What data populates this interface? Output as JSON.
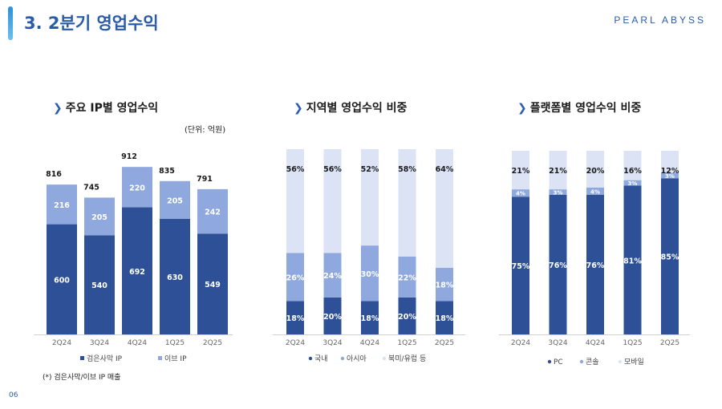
{
  "header": {
    "title": "3. 2분기 영업수익",
    "brand": "PEARL ABYSS",
    "accent_color": "#2b8fd9"
  },
  "footnote": "(*) 검은사막/이브 IP 매출",
  "page_number": "06",
  "chart_data": [
    {
      "type": "bar",
      "stacked": true,
      "title": "주요 IP별 영업수익",
      "unit_label": "(단위: 억원)",
      "categories": [
        "2Q24",
        "3Q24",
        "4Q24",
        "1Q25",
        "2Q25"
      ],
      "series": [
        {
          "name": "검은사막 IP",
          "color": "#2e5096",
          "values": [
            600,
            540,
            692,
            630,
            549
          ]
        },
        {
          "name": "이브 IP",
          "color": "#8fa9df",
          "values": [
            216,
            205,
            220,
            205,
            242
          ]
        }
      ],
      "totals": [
        816,
        745,
        912,
        835,
        791
      ],
      "ylim": [
        0,
        1000
      ],
      "legend": "bottom"
    },
    {
      "type": "bar",
      "stacked": true,
      "percent": true,
      "title": "지역별 영업수익 비중",
      "categories": [
        "2Q24",
        "3Q24",
        "4Q24",
        "1Q25",
        "2Q25"
      ],
      "series": [
        {
          "name": "국내",
          "color": "#2e5096",
          "values": [
            18,
            20,
            18,
            20,
            18
          ]
        },
        {
          "name": "아시아",
          "color": "#8fa9df",
          "values": [
            26,
            24,
            30,
            22,
            18
          ]
        },
        {
          "name": "북미/유럽 등",
          "color": "#dbe3f5",
          "values": [
            56,
            56,
            52,
            58,
            64
          ]
        }
      ],
      "ylim": [
        0,
        100
      ],
      "legend": "bottom"
    },
    {
      "type": "bar",
      "stacked": true,
      "percent": true,
      "title": "플랫폼별 영업수익 비중",
      "categories": [
        "2Q24",
        "3Q24",
        "4Q24",
        "1Q25",
        "2Q25"
      ],
      "series": [
        {
          "name": "PC",
          "color": "#2e5096",
          "values": [
            75,
            76,
            76,
            81,
            85
          ]
        },
        {
          "name": "콘솔",
          "color": "#8fa9df",
          "values": [
            4,
            3,
            4,
            3,
            3
          ]
        },
        {
          "name": "모바일",
          "color": "#dbe3f5",
          "values": [
            21,
            21,
            20,
            16,
            12
          ]
        }
      ],
      "ylim": [
        0,
        100
      ],
      "legend": "bottom"
    }
  ]
}
